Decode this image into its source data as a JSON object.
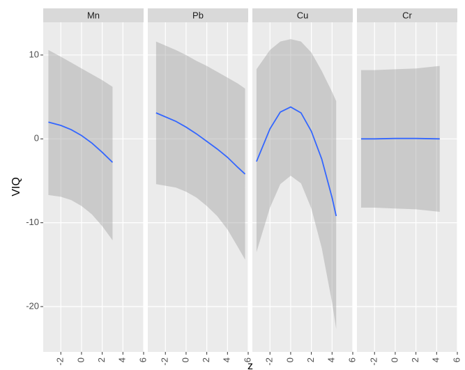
{
  "chart_data": {
    "type": "line",
    "y_label": "VIQ",
    "x_label": "z",
    "ylim": [
      -25.4,
      13.9
    ],
    "yticks": [
      -20,
      -10,
      0,
      10
    ],
    "xlim": [
      -3.7,
      6.0
    ],
    "xticks": [
      -2,
      0,
      2,
      4,
      6
    ],
    "grid": true,
    "line_color": "#3366ff",
    "band_color": "#999999",
    "panels": [
      {
        "title": "Mn",
        "x": [
          -3.2,
          -2,
          -1,
          0,
          1,
          2,
          3
        ],
        "values": [
          2.0,
          1.6,
          1.1,
          0.4,
          -0.5,
          -1.6,
          -2.8
        ],
        "lower": [
          -6.7,
          -6.9,
          -7.3,
          -8.0,
          -9.0,
          -10.4,
          -12.1
        ],
        "upper": [
          10.6,
          9.8,
          9.1,
          8.4,
          7.7,
          7.0,
          6.2
        ]
      },
      {
        "title": "Pb",
        "x": [
          -2.9,
          -1,
          0,
          1,
          2,
          3,
          4,
          5,
          5.7
        ],
        "values": [
          3.1,
          2.1,
          1.4,
          0.6,
          -0.3,
          -1.2,
          -2.2,
          -3.4,
          -4.2
        ],
        "lower": [
          -5.4,
          -5.8,
          -6.3,
          -7.0,
          -8.0,
          -9.2,
          -10.8,
          -12.9,
          -14.4
        ],
        "upper": [
          11.6,
          10.6,
          10.0,
          9.3,
          8.7,
          8.0,
          7.3,
          6.6,
          6.0
        ]
      },
      {
        "title": "Cu",
        "x": [
          -3.3,
          -2,
          -1,
          0,
          1,
          2,
          3,
          4,
          4.4
        ],
        "values": [
          -2.7,
          1.2,
          3.2,
          3.8,
          3.1,
          0.9,
          -2.4,
          -7.0,
          -9.2
        ],
        "lower": [
          -13.5,
          -8.2,
          -5.4,
          -4.4,
          -5.3,
          -8.3,
          -13.0,
          -19.5,
          -22.7
        ],
        "upper": [
          8.3,
          10.6,
          11.6,
          11.9,
          11.6,
          10.3,
          8.1,
          5.6,
          4.5
        ]
      },
      {
        "title": "Cr",
        "x": [
          -3.3,
          -2,
          0,
          2,
          4.3
        ],
        "values": [
          0,
          0,
          0.05,
          0.05,
          0
        ],
        "lower": [
          -8.2,
          -8.2,
          -8.3,
          -8.4,
          -8.7
        ],
        "upper": [
          8.2,
          8.2,
          8.3,
          8.4,
          8.7
        ]
      }
    ]
  }
}
